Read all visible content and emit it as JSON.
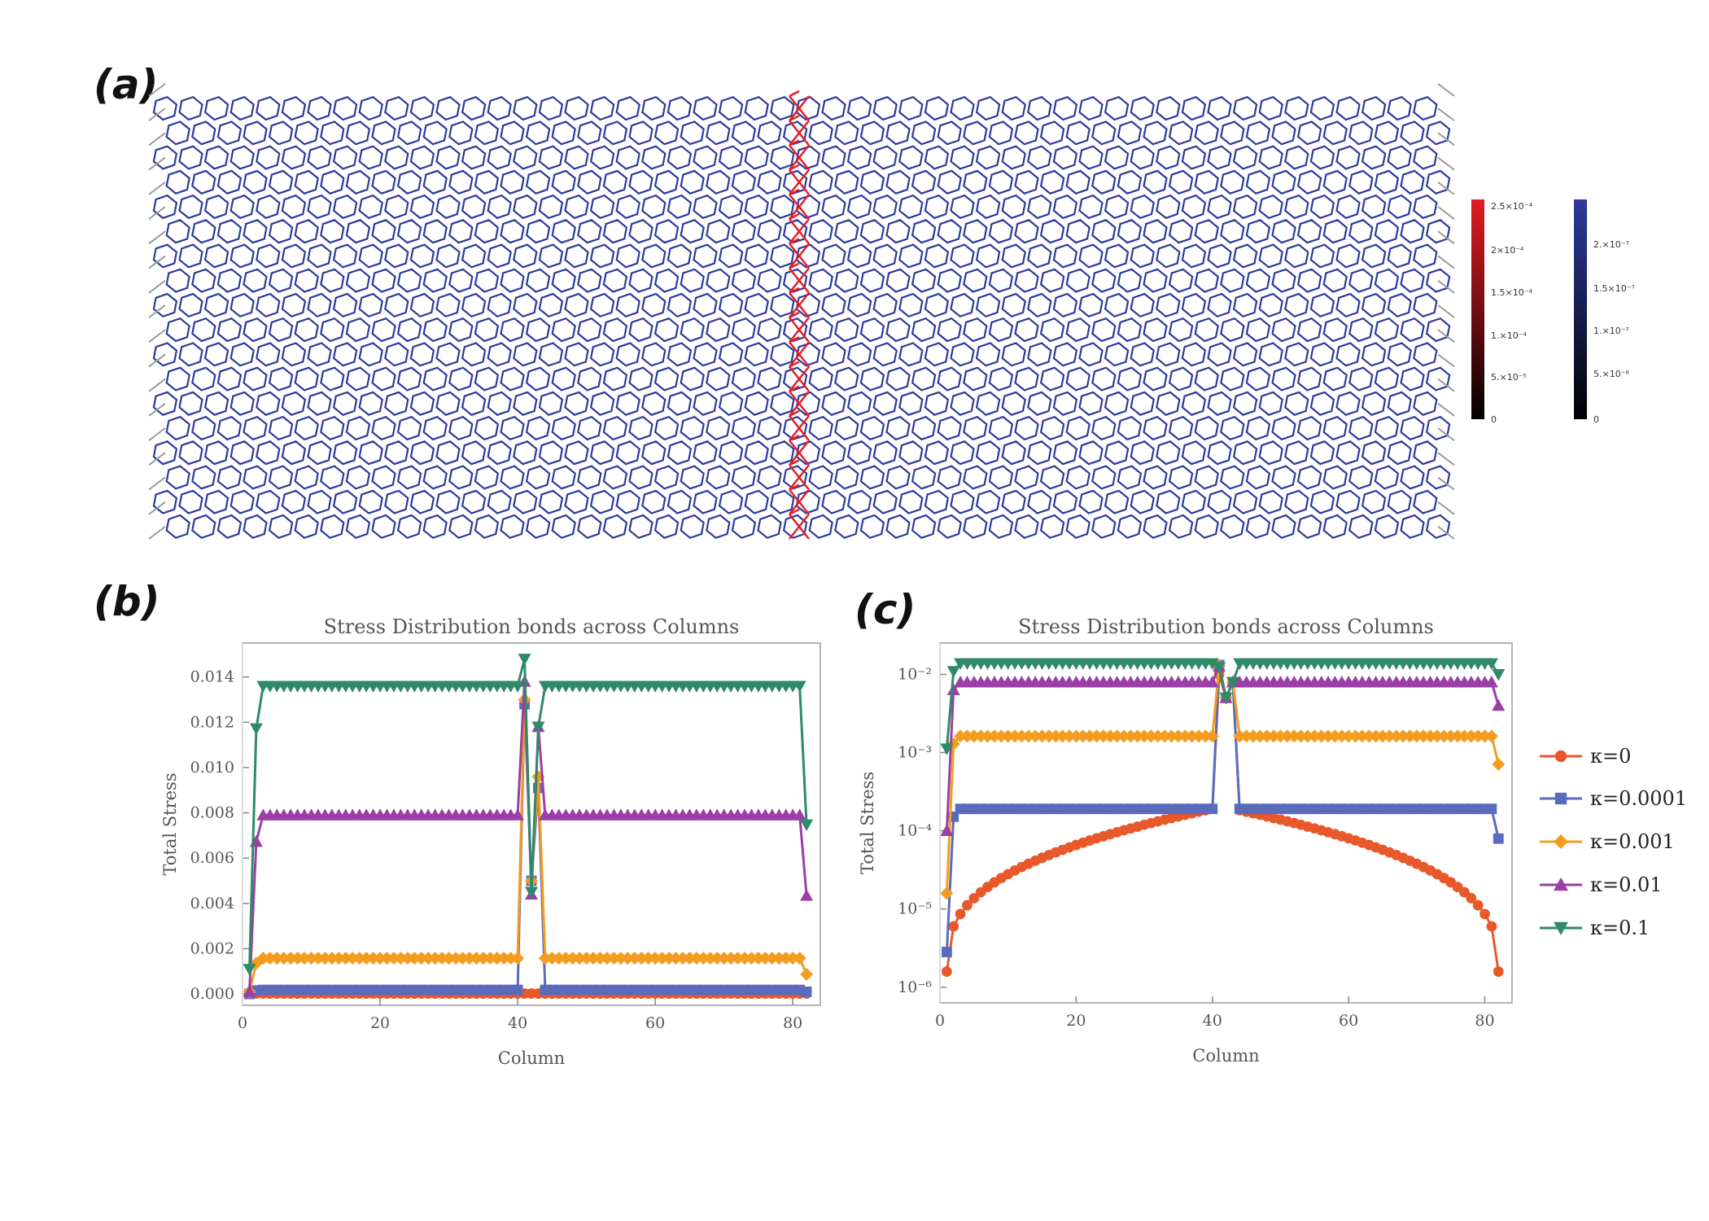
{
  "panels": {
    "a": "(a)",
    "b": "(b)",
    "c": "(c)"
  },
  "lattice": {
    "description_label": "kagome lattice stress map",
    "colorbar_red": {
      "ticks": [
        "2.5×10⁻⁴",
        "2×10⁻⁴",
        "1.5×10⁻⁴",
        "1.×10⁻⁴",
        "5.×10⁻⁵",
        "0"
      ],
      "max_color": "#e31b23",
      "min_color": "#000000"
    },
    "colorbar_blue": {
      "ticks": [
        "2.×10⁻⁷",
        "1.5×10⁻⁷",
        "1.×10⁻⁷",
        "5.×10⁻⁸",
        "0"
      ],
      "max_color": "#2e3a9e",
      "min_color": "#000000"
    }
  },
  "colors": {
    "k0": "#e8582a",
    "k1": "#5a6bbd",
    "k2": "#f39c1f",
    "k3": "#9b3ea6",
    "k4": "#2f8a6a",
    "lattice_blue": "#2b3a9c",
    "lattice_red": "#e31b23",
    "lattice_gray": "#9a9a9a"
  },
  "chart_data": [
    {
      "type": "line",
      "title": "Stress Distribution bonds across Columns",
      "xlabel": "Column",
      "ylabel": "Total Stress",
      "xlim": [
        0,
        84
      ],
      "ylim": [
        -0.0005,
        0.0155
      ],
      "xticks": [
        "0",
        "20",
        "40",
        "60",
        "80"
      ],
      "yticks": [
        "0.000",
        "0.002",
        "0.004",
        "0.006",
        "0.008",
        "0.010",
        "0.012",
        "0.014"
      ],
      "scale": "linear",
      "series": [
        {
          "name": "κ=0",
          "marker": "circle",
          "plateau": 0.0,
          "edge": 0.0,
          "peak": 0.0
        },
        {
          "name": "κ=0.0001",
          "marker": "square",
          "plateau": 0.00018,
          "edge": 0.0,
          "peak": 0.0128,
          "dip": 0.005,
          "post": 0.0091
        },
        {
          "name": "κ=0.001",
          "marker": "diamond",
          "plateau": 0.00158,
          "edge": 0.0001,
          "peak": 0.013,
          "dip": 0.005,
          "post": 0.0096
        },
        {
          "name": "κ=0.01",
          "marker": "triangle-up",
          "plateau": 0.0079,
          "edge": 0.0001,
          "peak": 0.0138,
          "dip": 0.0044,
          "post": 0.0118
        },
        {
          "name": "κ=0.1",
          "marker": "triangle-down",
          "plateau": 0.0136,
          "edge": 0.0011,
          "peak": 0.0148,
          "dip": 0.0045,
          "post": 0.0118
        }
      ]
    },
    {
      "type": "line",
      "title": "Stress Distribution bonds across Columns",
      "xlabel": "Column",
      "ylabel": "Total Stress",
      "xlim": [
        0,
        84
      ],
      "ylim": [
        -6.2,
        -1.6
      ],
      "xticks": [
        "0",
        "20",
        "40",
        "60",
        "80"
      ],
      "yticks": [
        "10⁻⁶",
        "10⁻⁵",
        "10⁻⁴",
        "10⁻³",
        "10⁻²"
      ],
      "scale": "log",
      "series": [
        {
          "name": "κ=0",
          "marker": "circle"
        },
        {
          "name": "κ=0.0001",
          "marker": "square"
        },
        {
          "name": "κ=0.001",
          "marker": "diamond"
        },
        {
          "name": "κ=0.01",
          "marker": "triangle-up"
        },
        {
          "name": "κ=0.1",
          "marker": "triangle-down"
        }
      ],
      "legend": [
        "κ=0",
        "κ=0.0001",
        "κ=0.001",
        "κ=0.01",
        "κ=0.1"
      ]
    }
  ]
}
